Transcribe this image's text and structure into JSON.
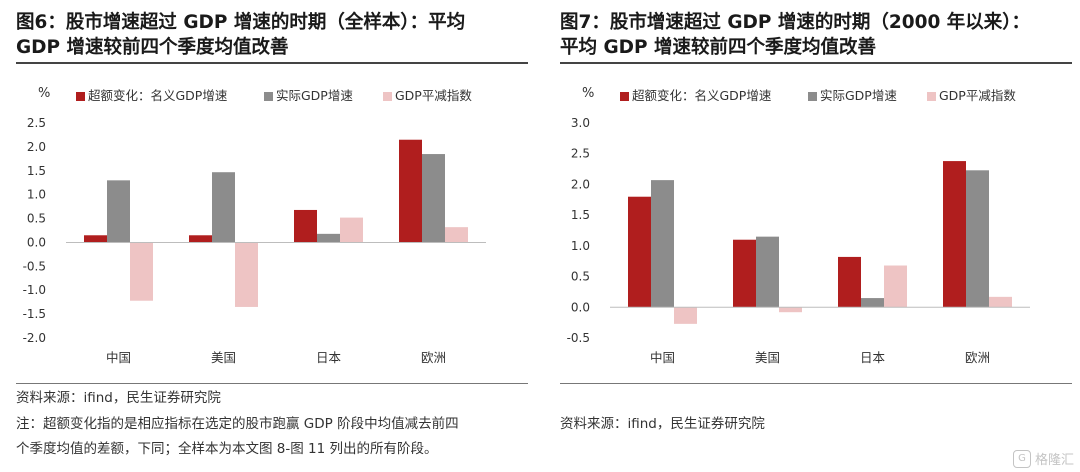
{
  "charts": [
    {
      "title_line1": "图6：股市增速超过 GDP 增速的时期（全样本）：平均",
      "title_line2": "GDP 增速较前四个季度均值改善",
      "source": "资料来源：ifind，民生证券研究院",
      "note_line1": "注：超额变化指的是相应指标在选定的股市跑赢 GDP 阶段中均值减去前四",
      "note_line2": "个季度均值的差额，下同；全样本为本文图 8-图 11 列出的所有阶段。"
    },
    {
      "title_line1": "图7：股市增速超过 GDP 增速的时期（2000 年以来）：",
      "title_line2": "平均 GDP 增速较前四个季度均值改善",
      "source": "资料来源：ifind，民生证券研究院"
    }
  ],
  "chart_data": [
    {
      "type": "bar",
      "unit_label": "%",
      "categories": [
        "中国",
        "美国",
        "日本",
        "欧洲"
      ],
      "series": [
        {
          "name": "超额变化：名义GDP增速",
          "color": "#b01e1e",
          "values": [
            0.15,
            0.15,
            0.68,
            2.15
          ]
        },
        {
          "name": "实际GDP增速",
          "color": "#8c8c8c",
          "values": [
            1.3,
            1.47,
            0.18,
            1.85
          ]
        },
        {
          "name": "GDP平减指数",
          "color": "#eec4c4",
          "values": [
            -1.22,
            -1.35,
            0.52,
            0.32
          ]
        }
      ],
      "ylim": [
        -2.0,
        2.5
      ],
      "yticks": [
        "-2.0",
        "-1.5",
        "-1.0",
        "-0.5",
        "0.0",
        "0.5",
        "1.0",
        "1.5",
        "2.0",
        "2.5"
      ],
      "ytick_values": [
        -2.0,
        -1.5,
        -1.0,
        -0.5,
        0.0,
        0.5,
        1.0,
        1.5,
        2.0,
        2.5
      ],
      "grid": false,
      "legend_position": "top"
    },
    {
      "type": "bar",
      "unit_label": "%",
      "categories": [
        "中国",
        "美国",
        "日本",
        "欧洲"
      ],
      "series": [
        {
          "name": "超额变化：名义GDP增速",
          "color": "#b01e1e",
          "values": [
            1.8,
            1.1,
            0.82,
            2.38
          ]
        },
        {
          "name": "实际GDP增速",
          "color": "#8c8c8c",
          "values": [
            2.07,
            1.15,
            0.15,
            2.23
          ]
        },
        {
          "name": "GDP平减指数",
          "color": "#eec4c4",
          "values": [
            -0.27,
            -0.08,
            0.68,
            0.17
          ]
        }
      ],
      "ylim": [
        -0.5,
        3.0
      ],
      "yticks": [
        "-0.5",
        "0.0",
        "0.5",
        "1.0",
        "1.5",
        "2.0",
        "2.5",
        "3.0"
      ],
      "ytick_values": [
        -0.5,
        0.0,
        0.5,
        1.0,
        1.5,
        2.0,
        2.5,
        3.0
      ],
      "grid": false,
      "legend_position": "top"
    }
  ],
  "watermark": {
    "icon": "G",
    "text": "格隆汇"
  }
}
